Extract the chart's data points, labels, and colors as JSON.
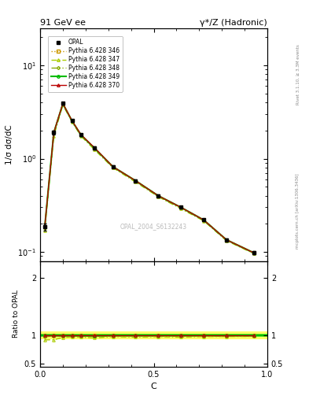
{
  "title_left": "91 GeV ee",
  "title_right": "γ*/Z (Hadronic)",
  "ylabel_main": "1/σ dσ/dC",
  "ylabel_ratio": "Ratio to OPAL",
  "xlabel": "C",
  "watermark": "OPAL_2004_S6132243",
  "right_label": "mcplots.cern.ch [arXiv:1306.3436]",
  "right_label2": "Rivet 3.1.10, ≥ 3.3M events",
  "x_data": [
    0.02,
    0.06,
    0.1,
    0.14,
    0.18,
    0.24,
    0.32,
    0.42,
    0.52,
    0.62,
    0.72,
    0.82,
    0.94
  ],
  "opal_y": [
    0.185,
    1.9,
    3.9,
    2.55,
    1.8,
    1.3,
    0.82,
    0.58,
    0.4,
    0.3,
    0.22,
    0.135,
    0.098
  ],
  "opal_yerr": [
    0.015,
    0.08,
    0.12,
    0.08,
    0.06,
    0.04,
    0.025,
    0.018,
    0.012,
    0.009,
    0.007,
    0.005,
    0.004
  ],
  "py346_y": [
    0.185,
    1.9,
    3.9,
    2.55,
    1.8,
    1.3,
    0.82,
    0.58,
    0.4,
    0.3,
    0.22,
    0.135,
    0.098
  ],
  "py347_y": [
    0.17,
    1.75,
    3.75,
    2.48,
    1.74,
    1.24,
    0.8,
    0.56,
    0.39,
    0.29,
    0.215,
    0.132,
    0.096
  ],
  "py348_y": [
    0.18,
    1.88,
    3.85,
    2.52,
    1.78,
    1.28,
    0.81,
    0.575,
    0.395,
    0.295,
    0.218,
    0.133,
    0.097
  ],
  "py349_y": [
    0.185,
    1.9,
    3.88,
    2.54,
    1.79,
    1.29,
    0.82,
    0.58,
    0.4,
    0.3,
    0.22,
    0.135,
    0.098
  ],
  "py370_y": [
    0.185,
    1.9,
    3.9,
    2.55,
    1.8,
    1.3,
    0.82,
    0.58,
    0.4,
    0.3,
    0.22,
    0.135,
    0.098
  ],
  "color_346": "#cc9900",
  "color_347": "#aacc00",
  "color_348": "#88aa00",
  "color_349": "#00bb00",
  "color_370": "#bb0000",
  "color_opal": "#000000",
  "band_yellow": "#ffff00",
  "band_green": "#00dd00",
  "ylim_main": [
    0.08,
    25
  ],
  "ylim_ratio": [
    0.45,
    2.3
  ],
  "xlim": [
    0.0,
    1.0
  ]
}
